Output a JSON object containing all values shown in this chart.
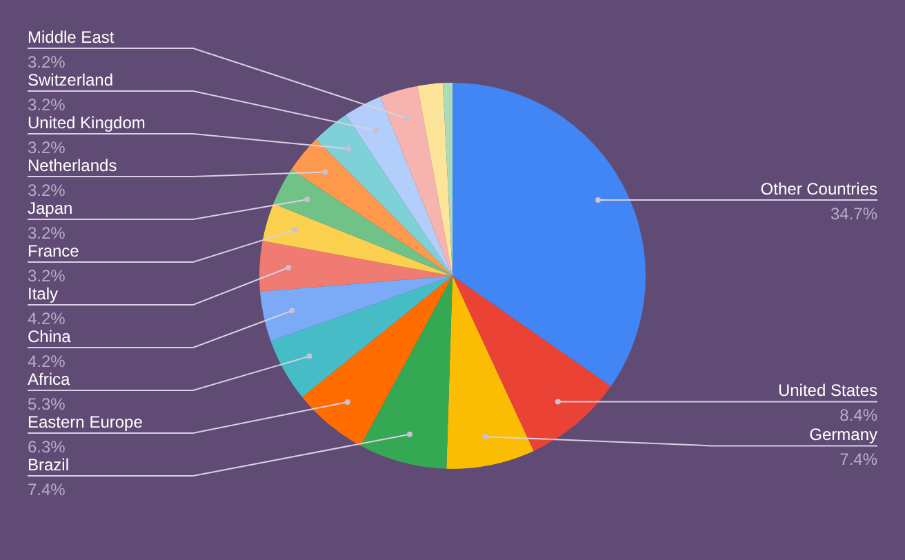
{
  "chart_data": {
    "type": "pie",
    "legend": false,
    "categories": [
      "Other Countries",
      "United States",
      "Germany",
      "Brazil",
      "Eastern Europe",
      "Africa",
      "China",
      "Italy",
      "France",
      "Japan",
      "Netherlands",
      "United Kingdom",
      "Switzerland",
      "Middle East",
      null,
      null
    ],
    "values": [
      34.7,
      8.4,
      7.4,
      7.4,
      6.3,
      5.3,
      4.2,
      4.2,
      3.2,
      3.2,
      3.2,
      3.2,
      3.2,
      3.2,
      2.1,
      0.8
    ],
    "value_labels": [
      "34.7%",
      "8.4%",
      "7.4%",
      "7.4%",
      "6.3%",
      "5.3%",
      "4.2%",
      "4.2%",
      "3.2%",
      "3.2%",
      "3.2%",
      "3.2%",
      "3.2%",
      "3.2%",
      null,
      null
    ],
    "colors": [
      "#4285f4",
      "#ea4335",
      "#fbbc04",
      "#34a853",
      "#ff6d01",
      "#46bdc6",
      "#7baaf7",
      "#f07b72",
      "#fcd04f",
      "#71c287",
      "#ff994d",
      "#7ed1d7",
      "#b3cefb",
      "#f7b4ae",
      "#fde49b",
      "#aadcb8"
    ]
  }
}
